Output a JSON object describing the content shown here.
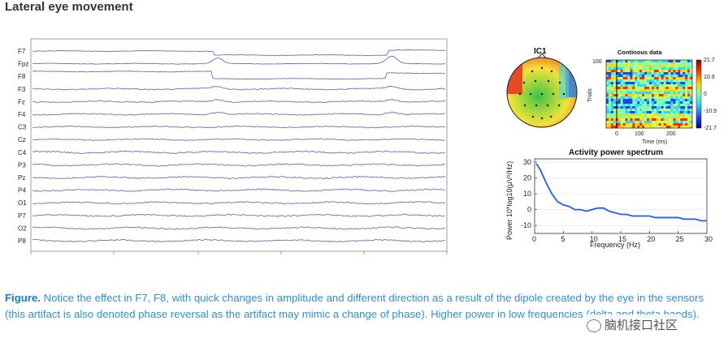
{
  "title": "Lateral eye movement",
  "eeg": {
    "channels": [
      "F7",
      "Fpz",
      "F8",
      "F3",
      "Fz",
      "F4",
      "C3",
      "Cz",
      "C4",
      "P3",
      "Pz",
      "P4",
      "O1",
      "P7",
      "O2",
      "P8"
    ],
    "line_color": "#6b6fb8"
  },
  "ic": {
    "title": "IC1"
  },
  "continuous": {
    "title": "Continous data",
    "ylabel": "Trials",
    "ytick": "100",
    "xlabel": "Time (ms)",
    "xticks": [
      "0",
      "100",
      "200"
    ],
    "colorbar_ticks": [
      "21.7",
      "10.9",
      "0",
      "-10.9",
      "-21.7"
    ]
  },
  "spectrum": {
    "title": "Activity power spectrum",
    "xlabel": "Frequency (Hz)",
    "ylabel": "Power 10*log10(μV²/Hz)",
    "xticks": [
      "0",
      "5",
      "10",
      "15",
      "20",
      "25",
      "30"
    ],
    "yticks": [
      "30",
      "20",
      "10",
      "0",
      "-10"
    ]
  },
  "chart_data": {
    "type": "line",
    "title": "Activity power spectrum",
    "xlabel": "Frequency (Hz)",
    "ylabel": "Power 10*log10(μV²/Hz)",
    "xlim": [
      0,
      30
    ],
    "ylim": [
      -15,
      32
    ],
    "series": [
      {
        "name": "IC1",
        "x": [
          0.3,
          1,
          2,
          3,
          4,
          5,
          6,
          7,
          8,
          9,
          10,
          11,
          12,
          13,
          14,
          15,
          16,
          17,
          18,
          19,
          20,
          21,
          22,
          23,
          24,
          25,
          26,
          27,
          28,
          29,
          30
        ],
        "y": [
          29,
          25,
          17,
          10,
          5,
          3,
          2,
          0,
          0,
          -1,
          0,
          1,
          1,
          -1,
          -2,
          -3,
          -3,
          -4,
          -4,
          -4,
          -4,
          -5,
          -5,
          -5,
          -5,
          -5,
          -6,
          -6,
          -6,
          -7,
          -7
        ]
      }
    ]
  },
  "caption": {
    "label": "Figure.",
    "text": " Notice the effect in F7, F8, with quick changes in amplitude and different direction as a result of the dipole created by the eye in the sensors (this artifact is also denoted phase reversal as the artifact may mimic a change of phase). Higher power in low frequencies (delta and theta bands)."
  },
  "watermark": {
    "text": "脑机接口社区"
  }
}
